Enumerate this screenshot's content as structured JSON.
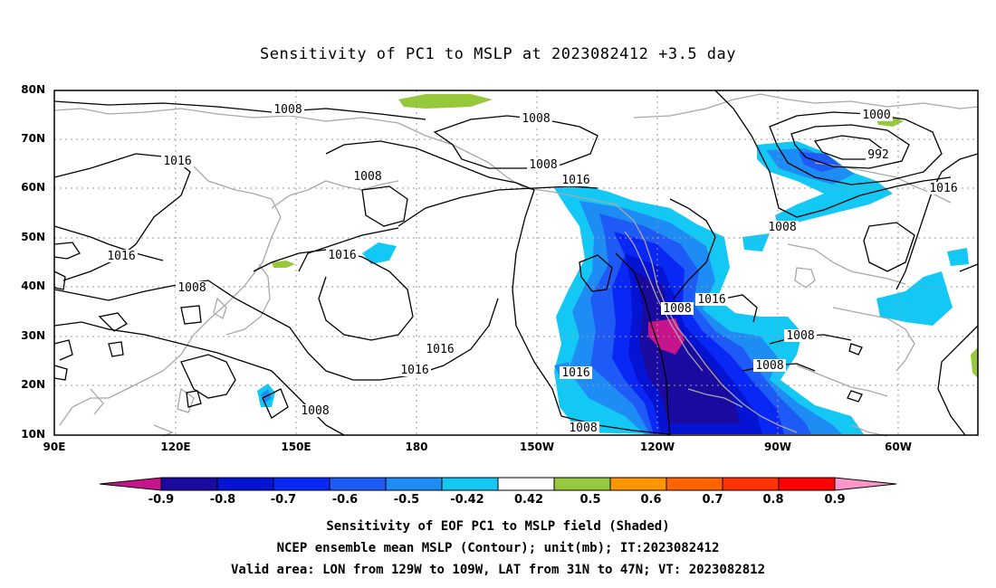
{
  "title": "Sensitivity of PC1 to MSLP at 2023082412 +3.5 day",
  "lat_labels": [
    "80N",
    "70N",
    "60N",
    "50N",
    "40N",
    "30N",
    "20N",
    "10N"
  ],
  "lon_labels": [
    "90E",
    "120E",
    "150E",
    "180",
    "150W",
    "120W",
    "90W",
    "60W"
  ],
  "colorbar": {
    "labels": [
      "-0.9",
      "-0.8",
      "-0.7",
      "-0.6",
      "-0.5",
      "-0.42",
      "0.42",
      "0.5",
      "0.6",
      "0.7",
      "0.8",
      "0.9"
    ],
    "colors": [
      "#c8148c",
      "#1a0aa0",
      "#0514d2",
      "#0a28f5",
      "#1e5af5",
      "#1e8cf5",
      "#14c8f5",
      "#ffffff",
      "#96c83c",
      "#ff9600",
      "#ff6400",
      "#ff3200",
      "#ff0000",
      "#ff96c8"
    ]
  },
  "contour_labels": [
    {
      "text": "1008"
    },
    {
      "text": "1008"
    },
    {
      "text": "1008"
    },
    {
      "text": "1016"
    },
    {
      "text": "1016"
    },
    {
      "text": "1016"
    },
    {
      "text": "1008"
    },
    {
      "text": "1016"
    },
    {
      "text": "1016"
    },
    {
      "text": "1016"
    },
    {
      "text": "1008"
    },
    {
      "text": "1016"
    },
    {
      "text": "1000"
    },
    {
      "text": "992"
    },
    {
      "text": "1016"
    },
    {
      "text": "1008"
    },
    {
      "text": "1008"
    },
    {
      "text": "1008"
    },
    {
      "text": "1008"
    },
    {
      "text": "1016"
    },
    {
      "text": "1008"
    },
    {
      "text": "1008"
    }
  ],
  "captions": [
    "Sensitivity of EOF PC1 to MSLP field (Shaded)",
    "NCEP ensemble mean MSLP (Contour); unit(mb); IT:2023082412",
    "Valid area: LON from 129W to 109W, LAT from 31N to 47N; VT: 2023082812"
  ]
}
